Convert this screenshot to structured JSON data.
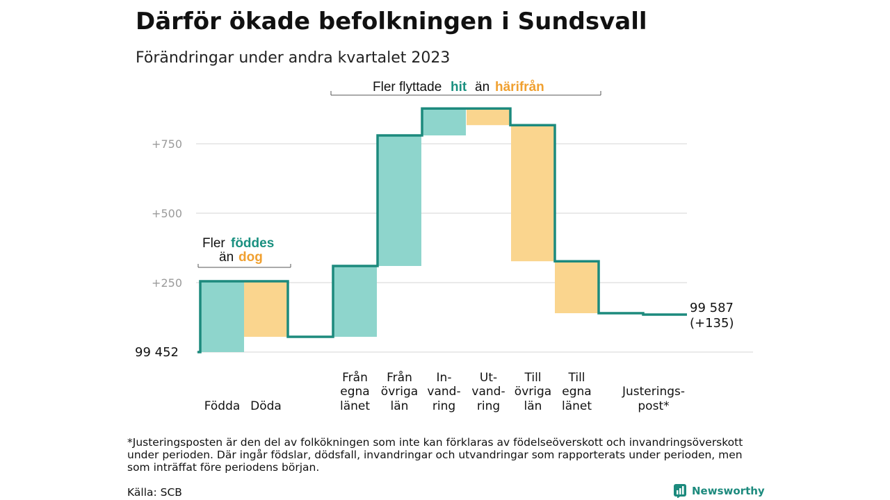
{
  "header": {
    "title": "Därför ökade befolkningen i Sundsvall",
    "subtitle": "Förändringar under andra kvartalet 2023"
  },
  "annotations": {
    "top_pre": "Fler flyttade",
    "top_hit": "hit",
    "top_mid": "än",
    "top_har": "härifrån",
    "left_pre": "Fler",
    "left_b1": "föddes",
    "left_mid": "än",
    "left_b2": "dog"
  },
  "colors": {
    "increase": "#8ed5cc",
    "decrease": "#fad58e",
    "line": "#1c8a7d",
    "accent_hit": "#1a9080",
    "accent_har": "#f0a030",
    "grid": "#dddddd"
  },
  "chart_data": {
    "type": "waterfall",
    "title": "Därför ökade befolkningen i Sundsvall",
    "subtitle": "Förändringar under andra kvartalet 2023",
    "start_value": 99452,
    "start_label": "99  452",
    "end_label": "99 587",
    "end_change": "(+135)",
    "yticks": [
      {
        "value": 250,
        "label": "+250"
      },
      {
        "value": 500,
        "label": "+500"
      },
      {
        "value": 750,
        "label": "+750"
      }
    ],
    "ylim": [
      0,
      880
    ],
    "grid": true,
    "steps": [
      {
        "label_lines": [
          "",
          "",
          "Födda"
        ],
        "change": 255,
        "kind": "increase"
      },
      {
        "label_lines": [
          "",
          "",
          "Döda"
        ],
        "change": -200,
        "kind": "decrease"
      },
      {
        "label_lines": [
          "Från",
          "egna",
          "länet"
        ],
        "change": 255,
        "kind": "increase"
      },
      {
        "label_lines": [
          "Från",
          "övriga",
          "län"
        ],
        "change": 470,
        "kind": "increase"
      },
      {
        "label_lines": [
          "In-",
          "vand-",
          "ring"
        ],
        "change": 97,
        "kind": "increase"
      },
      {
        "label_lines": [
          "Ut-",
          "vand-",
          "ring"
        ],
        "change": -60,
        "kind": "decrease"
      },
      {
        "label_lines": [
          "Till",
          "övriga",
          "län"
        ],
        "change": -490,
        "kind": "decrease"
      },
      {
        "label_lines": [
          "Till",
          "egna",
          "länet"
        ],
        "change": -187,
        "kind": "decrease"
      },
      {
        "label_lines": [
          "",
          "Justerings-",
          "post*"
        ],
        "change": -5,
        "kind": "decrease"
      }
    ],
    "total_change": 135
  },
  "footnote": "*Justeringsposten är den del av folkökningen som inte kan förklaras av födelseöverskott och invandringsöverskott under perioden. Där ingår födslar, dödsfall, invandringar och utvandringar som rapporterats under perioden, men som inträffat före periodens början.",
  "source": "Källa: SCB",
  "brand": "Newsworthy"
}
